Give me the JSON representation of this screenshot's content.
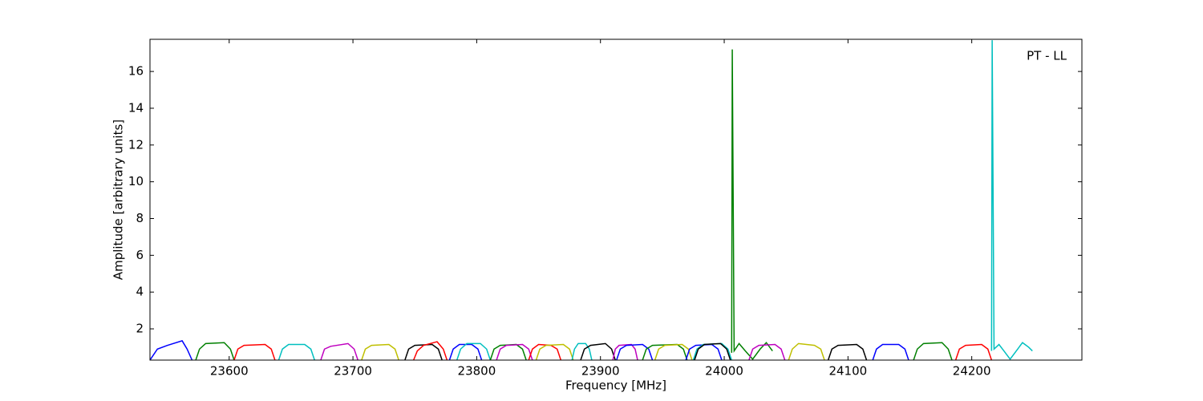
{
  "chart_data": {
    "type": "line",
    "xlabel": "Frequency [MHz]",
    "ylabel": "Amplitude [arbitrary units]",
    "annotation": "PT - LL",
    "xlim": [
      23536,
      24289
    ],
    "ylim": [
      0.3,
      17.75
    ],
    "xticks": [
      23600,
      23700,
      23800,
      23900,
      24000,
      24100,
      24200
    ],
    "yticks": [
      2,
      4,
      6,
      8,
      10,
      12,
      14,
      16
    ],
    "series": [
      {
        "color": "#0000ff",
        "x": [
          23536,
          23542,
          23550,
          23562,
          23566,
          23570
        ],
        "values": [
          0.3,
          0.9,
          1.1,
          1.35,
          0.9,
          0.3
        ]
      },
      {
        "color": "#008000",
        "x": [
          23573,
          23576,
          23581,
          23596,
          23601,
          23604
        ],
        "values": [
          0.3,
          0.9,
          1.2,
          1.25,
          0.9,
          0.3
        ]
      },
      {
        "color": "#ff0000",
        "x": [
          23604,
          23607,
          23612,
          23629,
          23634,
          23637
        ],
        "values": [
          0.3,
          0.9,
          1.1,
          1.15,
          0.9,
          0.3
        ]
      },
      {
        "color": "#00bfbf",
        "x": [
          23640,
          23643,
          23648,
          23661,
          23666,
          23669
        ],
        "values": [
          0.3,
          0.9,
          1.15,
          1.15,
          0.9,
          0.3
        ]
      },
      {
        "color": "#bf00bf",
        "x": [
          23674,
          23677,
          23682,
          23696,
          23701,
          23704
        ],
        "values": [
          0.3,
          0.9,
          1.05,
          1.2,
          0.9,
          0.3
        ]
      },
      {
        "color": "#bfbf00",
        "x": [
          23707,
          23710,
          23715,
          23729,
          23734,
          23737
        ],
        "values": [
          0.3,
          0.9,
          1.1,
          1.15,
          0.9,
          0.3
        ]
      },
      {
        "color": "#000000",
        "x": [
          23742,
          23745,
          23750,
          23764,
          23769,
          23772
        ],
        "values": [
          0.3,
          0.9,
          1.1,
          1.15,
          0.9,
          0.3
        ]
      },
      {
        "color": "#ff0000",
        "x": [
          23749,
          23752,
          23757,
          23768,
          23773,
          23776
        ],
        "values": [
          0.3,
          0.8,
          1.1,
          1.3,
          0.9,
          0.3
        ]
      },
      {
        "color": "#0000ff",
        "x": [
          23778,
          23781,
          23786,
          23796,
          23801,
          23804
        ],
        "values": [
          0.3,
          0.9,
          1.15,
          1.15,
          0.9,
          0.3
        ]
      },
      {
        "color": "#00bfbf",
        "x": [
          23784,
          23787,
          23792,
          23803,
          23808,
          23811
        ],
        "values": [
          0.3,
          0.9,
          1.2,
          1.2,
          0.9,
          0.3
        ]
      },
      {
        "color": "#008000",
        "x": [
          23811,
          23814,
          23819,
          23832,
          23837,
          23840
        ],
        "values": [
          0.3,
          0.9,
          1.1,
          1.15,
          0.9,
          0.3
        ]
      },
      {
        "color": "#bf00bf",
        "x": [
          23816,
          23819,
          23824,
          23837,
          23842,
          23845
        ],
        "values": [
          0.3,
          0.9,
          1.1,
          1.15,
          0.9,
          0.3
        ]
      },
      {
        "color": "#ff0000",
        "x": [
          23842,
          23845,
          23850,
          23860,
          23865,
          23868
        ],
        "values": [
          0.3,
          0.9,
          1.15,
          1.1,
          0.9,
          0.3
        ]
      },
      {
        "color": "#bfbf00",
        "x": [
          23848,
          23851,
          23856,
          23870,
          23875,
          23878
        ],
        "values": [
          0.3,
          0.9,
          1.1,
          1.15,
          0.9,
          0.3
        ]
      },
      {
        "color": "#00bfbf",
        "x": [
          23877,
          23879,
          23882,
          23888,
          23891,
          23893
        ],
        "values": [
          0.3,
          0.9,
          1.2,
          1.2,
          0.9,
          0.3
        ]
      },
      {
        "color": "#000000",
        "x": [
          23884,
          23887,
          23892,
          23904,
          23909,
          23912
        ],
        "values": [
          0.3,
          0.9,
          1.1,
          1.2,
          0.9,
          0.3
        ]
      },
      {
        "color": "#bf00bf",
        "x": [
          23910,
          23912,
          23915,
          23925,
          23928,
          23930
        ],
        "values": [
          0.3,
          0.9,
          1.1,
          1.15,
          0.9,
          0.3
        ]
      },
      {
        "color": "#0000ff",
        "x": [
          23913,
          23916,
          23921,
          23934,
          23939,
          23942
        ],
        "values": [
          0.3,
          0.9,
          1.1,
          1.15,
          0.9,
          0.3
        ]
      },
      {
        "color": "#008000",
        "x": [
          23934,
          23937,
          23942,
          23962,
          23967,
          23970
        ],
        "values": [
          0.3,
          0.9,
          1.1,
          1.15,
          0.9,
          0.3
        ]
      },
      {
        "color": "#bfbf00",
        "x": [
          23944,
          23947,
          23952,
          23966,
          23971,
          23974
        ],
        "values": [
          0.3,
          0.9,
          1.1,
          1.15,
          0.9,
          0.3
        ]
      },
      {
        "color": "#0000ff",
        "x": [
          23969,
          23972,
          23977,
          23990,
          23995,
          23998
        ],
        "values": [
          0.3,
          0.9,
          1.1,
          1.15,
          0.9,
          0.3
        ]
      },
      {
        "color": "#00bfbf",
        "x": [
          23975,
          23978,
          23983,
          23998,
          24003,
          24006
        ],
        "values": [
          0.3,
          0.9,
          1.15,
          1.2,
          0.9,
          0.3
        ]
      },
      {
        "color": "#000000",
        "x": [
          23976,
          23979,
          23984,
          23997,
          24002,
          24005
        ],
        "values": [
          0.3,
          0.9,
          1.15,
          1.2,
          0.9,
          0.3
        ]
      },
      {
        "color": "#008000",
        "x": [
          24006,
          24006.5,
          24008,
          24012,
          24017,
          24023,
          24029,
          24034,
          24039
        ],
        "values": [
          0.7,
          17.2,
          0.8,
          1.2,
          0.8,
          0.35,
          0.9,
          1.25,
          0.8
        ]
      },
      {
        "color": "#bf00bf",
        "x": [
          24020,
          24023,
          24028,
          24041,
          24046,
          24049
        ],
        "values": [
          0.3,
          0.9,
          1.1,
          1.15,
          0.9,
          0.3
        ]
      },
      {
        "color": "#bfbf00",
        "x": [
          24052,
          24055,
          24060,
          24073,
          24078,
          24081
        ],
        "values": [
          0.3,
          0.9,
          1.2,
          1.1,
          0.9,
          0.3
        ]
      },
      {
        "color": "#000000",
        "x": [
          24084,
          24087,
          24092,
          24107,
          24112,
          24115
        ],
        "values": [
          0.3,
          0.9,
          1.1,
          1.15,
          0.9,
          0.3
        ]
      },
      {
        "color": "#0000ff",
        "x": [
          24120,
          24123,
          24128,
          24141,
          24146,
          24149
        ],
        "values": [
          0.3,
          0.9,
          1.15,
          1.15,
          0.9,
          0.3
        ]
      },
      {
        "color": "#008000",
        "x": [
          24153,
          24156,
          24161,
          24176,
          24181,
          24184
        ],
        "values": [
          0.3,
          0.9,
          1.2,
          1.25,
          0.9,
          0.3
        ]
      },
      {
        "color": "#ff0000",
        "x": [
          24187,
          24190,
          24195,
          24208,
          24213,
          24216
        ],
        "values": [
          0.3,
          0.9,
          1.1,
          1.15,
          0.9,
          0.3
        ]
      },
      {
        "color": "#00bfbf",
        "x": [
          24216,
          24216.5,
          24218,
          24222,
          24226,
          24231,
          24236,
          24241,
          24246,
          24249
        ],
        "values": [
          0.8,
          17.7,
          0.9,
          1.15,
          0.8,
          0.35,
          0.8,
          1.25,
          1.0,
          0.8
        ]
      }
    ]
  }
}
